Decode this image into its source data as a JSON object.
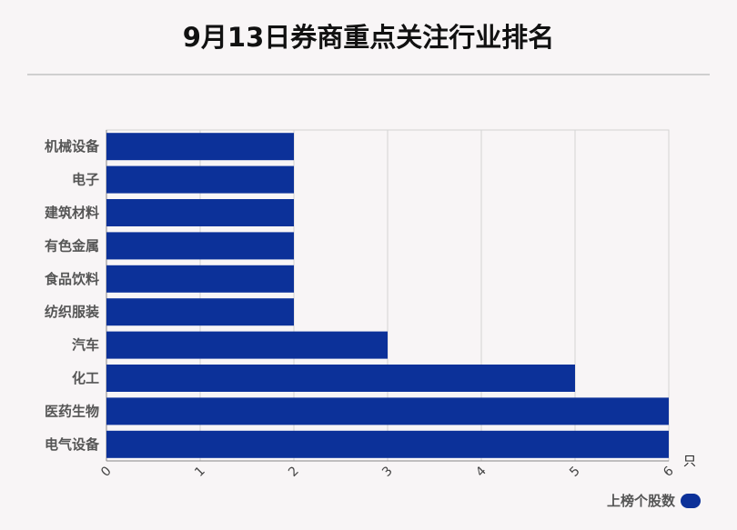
{
  "title": "9月13日券商重点关注行业排名",
  "unit_label": "只",
  "legend": {
    "label": "上榜个股数",
    "color": "#0c3199"
  },
  "chart_data": {
    "type": "bar",
    "orientation": "horizontal",
    "categories": [
      "机械设备",
      "电子",
      "建筑材料",
      "有色金属",
      "食品饮料",
      "纺织服装",
      "汽车",
      "化工",
      "医药生物",
      "电气设备"
    ],
    "series": [
      {
        "name": "上榜个股数",
        "values": [
          2,
          2,
          2,
          2,
          2,
          2,
          3,
          5,
          6,
          6
        ]
      }
    ],
    "xlim": [
      0,
      6
    ],
    "xticks": [
      "0",
      "1",
      "2",
      "3",
      "4",
      "5",
      "6"
    ],
    "grid": true,
    "legend_position": "bottom-right"
  }
}
